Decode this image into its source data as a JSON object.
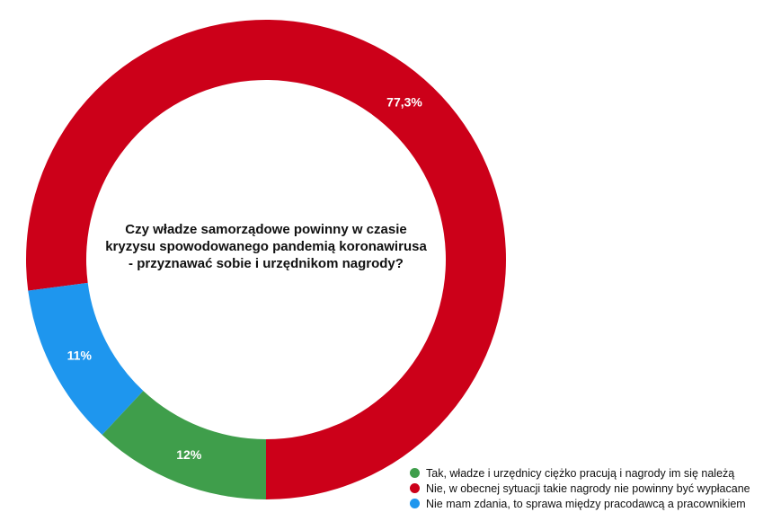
{
  "chart_data": {
    "type": "pie",
    "style": "donut",
    "title": "Czy władze samorządowe powinny w czasie kryzysu spowodowanego pandemią koronawirusa - przyznawać sobie i urzędnikom nagrody?",
    "slices": [
      {
        "label": "Nie, w obecnej sytuacji takie nagrody nie powinny być wypłacane",
        "value": 77.3,
        "value_label": "77,3%",
        "color": "#cc0019"
      },
      {
        "label": "Nie mam zdania, to sprawa między pracodawcą a pracownikiem",
        "value": 11,
        "value_label": "11%",
        "color": "#1e96ee"
      },
      {
        "label": "Tak, władze i urzędnicy ciężko pracują i nagrody im się należą",
        "value": 12,
        "value_label": "12%",
        "color": "#3f9e4b"
      }
    ],
    "legend": {
      "placement": "bottom-right",
      "items": [
        {
          "label": "Tak, władze i urzędnicy ciężko pracują i nagrody im się należą",
          "color": "#3f9e4b"
        },
        {
          "label": "Nie, w obecnej sytuacji takie nagrody nie powinny być wypłacane",
          "color": "#cc0019"
        },
        {
          "label": "Nie mam zdania, to sprawa między pracodawcą a pracownikiem",
          "color": "#1e96ee"
        }
      ]
    }
  }
}
